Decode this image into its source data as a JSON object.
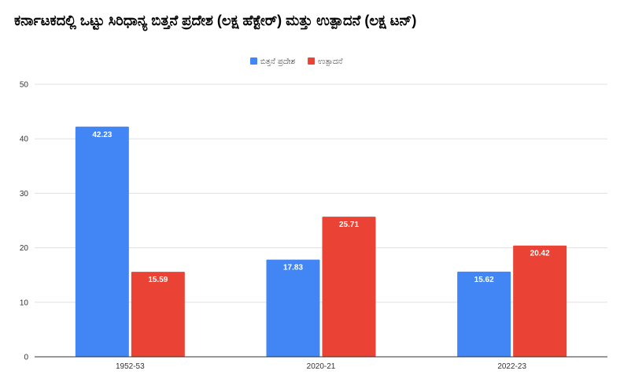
{
  "chart_data": {
    "type": "bar",
    "title": "ಕರ್ನಾಟಕದಲ್ಲಿ ಒಟ್ಟು ಸಿರಿಧಾನ್ಯ ಬಿತ್ತನೆ ಪ್ರದೇಶ (ಲಕ್ಷ ಹೆಕ್ಟೇರ್) ಮತ್ತು ಉತ್ಪಾದನೆ (ಲಕ್ಷ ಟನ್)",
    "xlabel": "",
    "ylabel": "",
    "categories": [
      "1952-53",
      "2020-21",
      "2022-23"
    ],
    "series": [
      {
        "name": "ಬಿತ್ತನೆ ಪ್ರದೇಶ",
        "color": "#4285f4",
        "values": [
          42.23,
          17.83,
          15.62
        ]
      },
      {
        "name": "ಉತ್ಪಾದನೆ",
        "color": "#ea4335",
        "values": [
          15.59,
          25.71,
          20.42
        ]
      }
    ],
    "ylim": [
      0,
      50
    ],
    "yticks": [
      0,
      10,
      20,
      30,
      40,
      50
    ],
    "grid": true,
    "legend_position": "top-center"
  }
}
